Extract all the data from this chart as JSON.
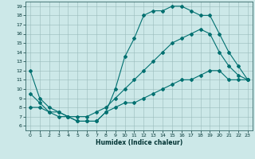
{
  "xlabel": "Humidex (Indice chaleur)",
  "bg_color": "#cce8e8",
  "grid_color": "#99bbbb",
  "line_color": "#007070",
  "xlim": [
    -0.5,
    23.5
  ],
  "ylim": [
    5.5,
    19.5
  ],
  "xticks": [
    0,
    1,
    2,
    3,
    4,
    5,
    6,
    7,
    8,
    9,
    10,
    11,
    12,
    13,
    14,
    15,
    16,
    17,
    18,
    19,
    20,
    21,
    22,
    23
  ],
  "yticks": [
    6,
    7,
    8,
    9,
    10,
    11,
    12,
    13,
    14,
    15,
    16,
    17,
    18,
    19
  ],
  "line1_x": [
    0,
    1,
    2,
    3,
    4,
    5,
    6,
    7,
    8,
    9,
    10,
    11,
    12,
    13,
    14,
    15,
    16,
    17,
    18,
    19,
    20,
    21,
    22,
    23
  ],
  "line1_y": [
    12,
    9,
    8,
    7.5,
    7,
    6.5,
    6.5,
    6.5,
    7.5,
    10,
    13.5,
    15.5,
    18,
    18.5,
    18.5,
    19,
    19,
    18.5,
    18,
    18,
    16,
    14,
    12.5,
    11
  ],
  "line1_markers_x": [
    0,
    1,
    2,
    3,
    5,
    7,
    9,
    10,
    11,
    12,
    13,
    14,
    15,
    16,
    17,
    18,
    19,
    20,
    21,
    22,
    23
  ],
  "line1_markers_y": [
    12,
    9,
    8,
    7.5,
    6.5,
    6.5,
    10,
    13.5,
    15.5,
    18,
    18.5,
    18.5,
    19,
    19,
    18.5,
    18,
    18,
    16,
    14,
    12.5,
    11
  ],
  "line2_x": [
    0,
    1,
    2,
    3,
    4,
    5,
    6,
    7,
    8,
    9,
    10,
    11,
    12,
    13,
    14,
    15,
    16,
    17,
    18,
    19,
    20,
    21,
    22,
    23
  ],
  "line2_y": [
    9.5,
    8.5,
    7.5,
    7,
    7,
    7,
    7,
    7.5,
    8,
    9,
    10,
    11,
    12,
    13,
    14,
    15,
    15.5,
    16,
    16.5,
    16,
    14,
    12.5,
    11.5,
    11
  ],
  "line2_markers_x": [
    0,
    1,
    2,
    3,
    5,
    7,
    9,
    10,
    11,
    12,
    13,
    14,
    15,
    16,
    17,
    18,
    19,
    20,
    21,
    22,
    23
  ],
  "line2_markers_y": [
    9.5,
    8.5,
    7.5,
    7,
    7,
    7.5,
    9,
    10,
    11,
    12,
    13,
    14,
    15,
    15.5,
    16,
    16.5,
    16,
    14,
    12.5,
    11.5,
    11
  ],
  "line3_x": [
    0,
    1,
    2,
    3,
    4,
    5,
    6,
    7,
    8,
    9,
    10,
    11,
    12,
    13,
    14,
    15,
    16,
    17,
    18,
    19,
    20,
    21,
    22,
    23
  ],
  "line3_y": [
    8,
    8,
    7.5,
    7.5,
    7,
    6.5,
    6.5,
    6.5,
    7.5,
    8,
    8.5,
    8.5,
    9,
    9.5,
    10,
    10.5,
    11,
    11,
    11.5,
    12,
    12,
    11,
    11,
    11
  ],
  "line3_markers_x": [
    0,
    2,
    4,
    5,
    6,
    7,
    8,
    9,
    10,
    11,
    12,
    13,
    14,
    15,
    16,
    17,
    18,
    19,
    21,
    22,
    23
  ],
  "line3_markers_y": [
    8,
    7.5,
    7,
    6.5,
    6.5,
    6.5,
    7.5,
    8,
    8.5,
    8.5,
    9,
    9.5,
    10,
    10.5,
    11,
    11,
    11.5,
    12,
    11,
    11,
    11
  ]
}
